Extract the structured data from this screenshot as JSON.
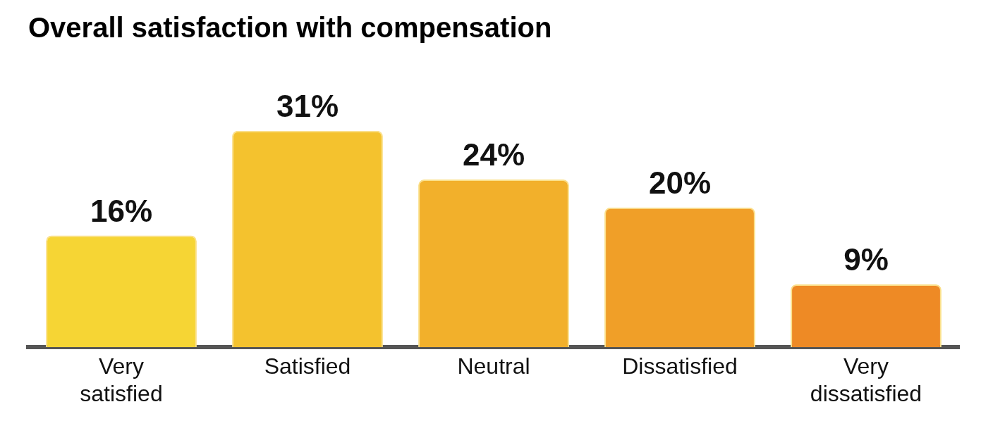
{
  "chart_data": {
    "type": "bar",
    "title": "Overall satisfaction with compensation",
    "categories": [
      "Very satisfied",
      "Satisfied",
      "Neutral",
      "Dissatisfied",
      "Very dissatisfied"
    ],
    "values": [
      16,
      31,
      24,
      20,
      9
    ],
    "value_labels": [
      "16%",
      "31%",
      "24%",
      "20%",
      "9%"
    ],
    "colors": [
      "#f6d534",
      "#f4c22e",
      "#f2b02b",
      "#f09f28",
      "#ee8a25"
    ],
    "grid": false,
    "data_labels": true,
    "tick_labels": "x"
  }
}
